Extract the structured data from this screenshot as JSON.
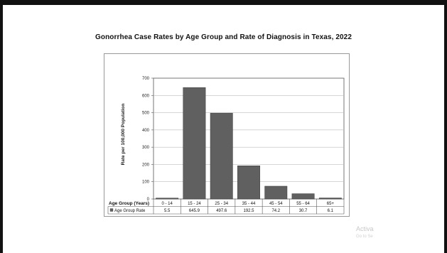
{
  "chart_data": {
    "type": "bar",
    "title": "Gonorrhea Case Rates by Age Group and Rate of Diagnosis in Texas, 2022",
    "ylabel": "Rate per 100,000 Population",
    "ylim": [
      0,
      700
    ],
    "yticks": [
      0,
      100,
      200,
      300,
      400,
      500,
      600,
      700
    ],
    "grid": true,
    "bar_color": "#606060",
    "table_header_label": "Age Group (Years)",
    "categories": [
      "0 - 14",
      "15 - 24",
      "25 - 34",
      "35 - 44",
      "45 - 54",
      "55 - 64",
      "65+"
    ],
    "series": [
      {
        "name": "Age Group Rate",
        "values": [
          5.5,
          645.9,
          497.6,
          192.5,
          74.2,
          30.7,
          6.1
        ],
        "value_labels": [
          "5.5",
          "645.9",
          "497.6",
          "192.5",
          "74.2",
          "30.7",
          "6.1"
        ]
      }
    ]
  },
  "watermark": {
    "line1": "Activa",
    "line2": "Go to Se"
  }
}
